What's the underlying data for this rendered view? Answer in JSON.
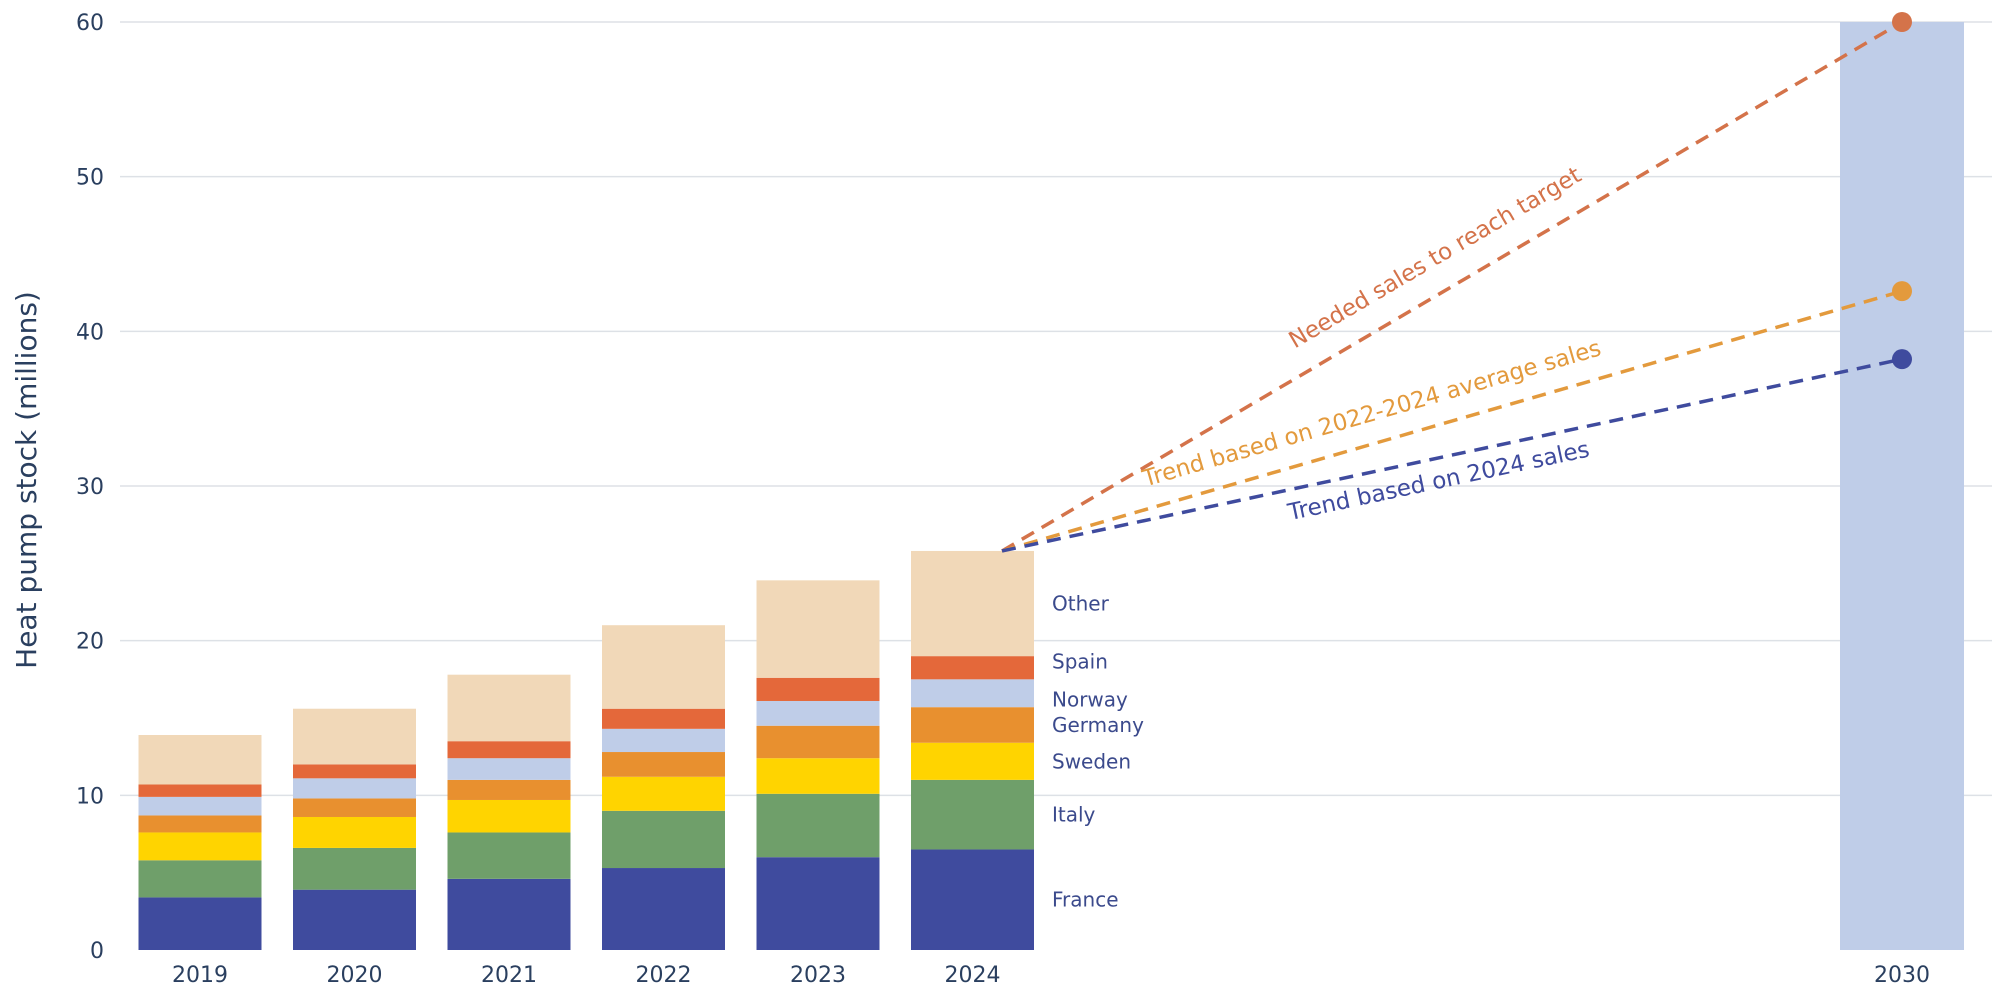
{
  "chart_data": {
    "type": "bar",
    "stacked": true,
    "ylabel": "Heat pump stock (millions)",
    "ylim": [
      0,
      60
    ],
    "yticks": [
      0,
      10,
      20,
      30,
      40,
      50,
      60
    ],
    "grid": true,
    "categories": [
      "2019",
      "2020",
      "2021",
      "2022",
      "2023",
      "2024"
    ],
    "series": [
      {
        "name": "France",
        "color": "#3f4b9e",
        "values": [
          3.4,
          3.9,
          4.6,
          5.3,
          6.0,
          6.5
        ]
      },
      {
        "name": "Italy",
        "color": "#6f9f6a",
        "values": [
          2.4,
          2.7,
          3.0,
          3.7,
          4.1,
          4.5
        ]
      },
      {
        "name": "Sweden",
        "color": "#ffd400",
        "values": [
          1.8,
          2.0,
          2.1,
          2.2,
          2.3,
          2.4
        ]
      },
      {
        "name": "Germany",
        "color": "#e8902f",
        "values": [
          1.1,
          1.2,
          1.3,
          1.6,
          2.1,
          2.3
        ]
      },
      {
        "name": "Norway",
        "color": "#bfcde8",
        "values": [
          1.2,
          1.3,
          1.4,
          1.5,
          1.6,
          1.8
        ]
      },
      {
        "name": "Spain",
        "color": "#e4683a",
        "values": [
          0.8,
          0.9,
          1.1,
          1.3,
          1.5,
          1.5
        ]
      },
      {
        "name": "Other",
        "color": "#f1d8b8",
        "values": [
          3.2,
          3.6,
          4.3,
          5.4,
          6.3,
          6.8
        ]
      }
    ],
    "target": {
      "category": "2030",
      "value": 60,
      "color": "#bfcde8"
    },
    "trends": [
      {
        "name": "Needed sales to reach target",
        "color": "#d4734a",
        "from": {
          "x": "2024",
          "y": 25.8
        },
        "to": {
          "x": "2030",
          "y": 60
        }
      },
      {
        "name": "Trend based on 2022-2024 average sales",
        "color": "#e39a3d",
        "from": {
          "x": "2024",
          "y": 25.8
        },
        "to": {
          "x": "2030",
          "y": 42.6
        }
      },
      {
        "name": "Trend based on 2024 sales",
        "color": "#3f4b9e",
        "from": {
          "x": "2024",
          "y": 25.8
        },
        "to": {
          "x": "2030",
          "y": 38.2
        }
      }
    ]
  }
}
